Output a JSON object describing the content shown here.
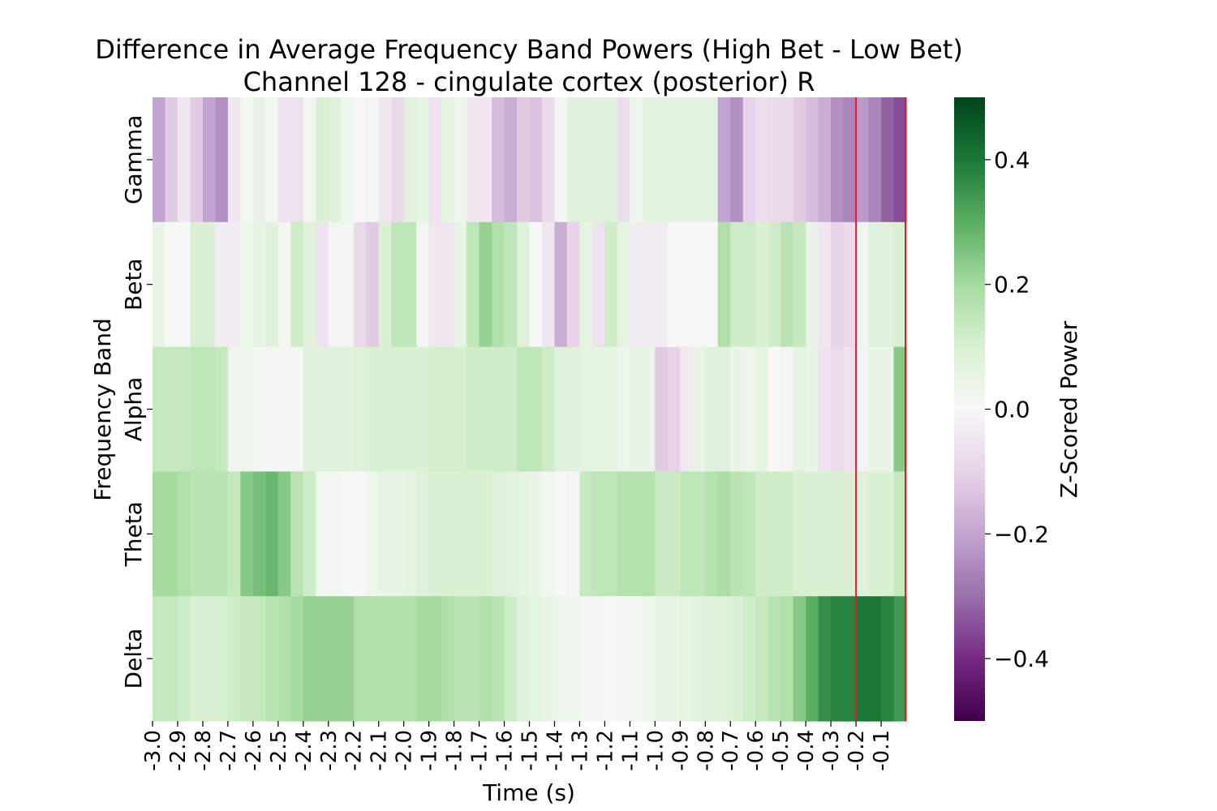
{
  "chart_data": {
    "type": "heatmap",
    "title": "Difference in Average Frequency Band Powers (High Bet - Low Bet)",
    "subtitle": "Channel 128 - cingulate cortex (posterior) R",
    "xlabel": "Time (s)",
    "ylabel": "Frequency Band",
    "x_tick_labels": [
      "-3.0",
      "-2.9",
      "-2.8",
      "-2.7",
      "-2.6",
      "-2.5",
      "-2.4",
      "-2.3",
      "-2.2",
      "-2.1",
      "-2.0",
      "-1.9",
      "-1.8",
      "-1.7",
      "-1.6",
      "-1.5",
      "-1.4",
      "-1.3",
      "-1.2",
      "-1.1",
      "-1.0",
      "-0.9",
      "-0.8",
      "-0.7",
      "-0.6",
      "-0.5",
      "-0.4",
      "-0.3",
      "-0.2",
      "-0.1"
    ],
    "rows": [
      "Gamma",
      "Beta",
      "Alpha",
      "Theta",
      "Delta"
    ],
    "n_time_bins": 60,
    "colorbar": {
      "label": "Z-Scored Power",
      "colormap": "PRGn",
      "range": [
        -0.5,
        0.5
      ],
      "ticks": [
        0.4,
        0.2,
        0.0,
        -0.2,
        -0.4
      ],
      "tick_labels": [
        "0.4",
        "0.2",
        "0.0",
        "−0.2",
        "−0.4"
      ]
    },
    "marker": {
      "x_value": -0.2,
      "color": "#e41a1c"
    },
    "values": {
      "Gamma": [
        -0.2,
        -0.12,
        -0.05,
        -0.12,
        -0.2,
        -0.24,
        -0.05,
        0.02,
        0.05,
        0.02,
        -0.06,
        -0.06,
        0.02,
        0.1,
        0.08,
        0.03,
        0.0,
        0.02,
        -0.05,
        -0.08,
        0.07,
        0.06,
        -0.06,
        0.06,
        0.03,
        -0.05,
        -0.05,
        -0.15,
        -0.18,
        -0.12,
        -0.14,
        -0.08,
        0.02,
        0.08,
        0.08,
        0.08,
        0.08,
        -0.07,
        0.03,
        0.07,
        0.07,
        0.07,
        0.07,
        0.07,
        0.07,
        -0.2,
        -0.24,
        -0.1,
        -0.07,
        -0.08,
        -0.08,
        -0.12,
        -0.15,
        -0.18,
        -0.24,
        -0.26,
        -0.22,
        -0.26,
        -0.32,
        -0.35
      ],
      "Beta": [
        0.05,
        0.0,
        0.0,
        0.1,
        0.1,
        -0.03,
        -0.03,
        0.03,
        0.05,
        0.08,
        0.02,
        0.12,
        0.08,
        -0.06,
        0.02,
        0.02,
        -0.08,
        -0.12,
        0.1,
        0.15,
        0.15,
        0.02,
        -0.05,
        -0.05,
        0.05,
        0.15,
        0.22,
        0.18,
        0.15,
        0.08,
        0.0,
        -0.05,
        -0.18,
        -0.1,
        0.06,
        -0.06,
        0.12,
        0.06,
        -0.03,
        -0.03,
        -0.03,
        0.0,
        0.0,
        0.0,
        0.0,
        0.18,
        0.12,
        0.12,
        0.1,
        0.12,
        0.16,
        0.14,
        0.05,
        -0.05,
        -0.1,
        -0.08,
        0.02,
        0.08,
        0.08,
        0.1
      ],
      "Alpha": [
        0.14,
        0.14,
        0.14,
        0.15,
        0.15,
        0.14,
        0.03,
        0.03,
        0.01,
        0.01,
        0.01,
        0.01,
        0.08,
        0.08,
        0.08,
        0.08,
        0.09,
        0.1,
        0.1,
        0.1,
        0.1,
        0.1,
        0.11,
        0.11,
        0.11,
        0.12,
        0.12,
        0.12,
        0.12,
        0.15,
        0.15,
        0.12,
        0.08,
        0.08,
        0.06,
        0.06,
        0.06,
        0.03,
        0.05,
        0.04,
        -0.12,
        -0.1,
        -0.04,
        0.05,
        0.08,
        0.08,
        0.04,
        0.03,
        0.06,
        0.0,
        0.02,
        0.06,
        0.04,
        -0.06,
        -0.08,
        -0.06,
        0.01,
        0.05,
        0.05,
        0.24
      ],
      "Theta": [
        0.2,
        0.2,
        0.18,
        0.16,
        0.16,
        0.16,
        0.14,
        0.24,
        0.26,
        0.28,
        0.24,
        0.16,
        0.12,
        0.02,
        0.02,
        0.0,
        0.0,
        0.03,
        0.05,
        0.05,
        0.06,
        0.08,
        0.1,
        0.1,
        0.1,
        0.1,
        0.1,
        0.08,
        0.07,
        0.06,
        0.04,
        0.02,
        0.0,
        0.02,
        0.14,
        0.15,
        0.15,
        0.17,
        0.17,
        0.17,
        0.13,
        0.13,
        0.15,
        0.15,
        0.17,
        0.19,
        0.16,
        0.15,
        0.12,
        0.12,
        0.12,
        0.1,
        0.1,
        0.1,
        0.1,
        0.1,
        0.08,
        0.1,
        0.1,
        0.14
      ],
      "Delta": [
        0.14,
        0.14,
        0.12,
        0.1,
        0.1,
        0.1,
        0.12,
        0.14,
        0.14,
        0.16,
        0.18,
        0.2,
        0.22,
        0.22,
        0.22,
        0.22,
        0.18,
        0.18,
        0.18,
        0.18,
        0.18,
        0.2,
        0.2,
        0.18,
        0.16,
        0.16,
        0.18,
        0.16,
        0.12,
        0.08,
        0.06,
        0.04,
        0.03,
        0.03,
        0.02,
        0.01,
        0.0,
        0.01,
        0.01,
        0.03,
        0.05,
        0.05,
        0.06,
        0.07,
        0.08,
        0.09,
        0.1,
        0.12,
        0.14,
        0.16,
        0.18,
        0.24,
        0.3,
        0.36,
        0.38,
        0.38,
        0.4,
        0.4,
        0.38,
        0.34
      ]
    }
  }
}
